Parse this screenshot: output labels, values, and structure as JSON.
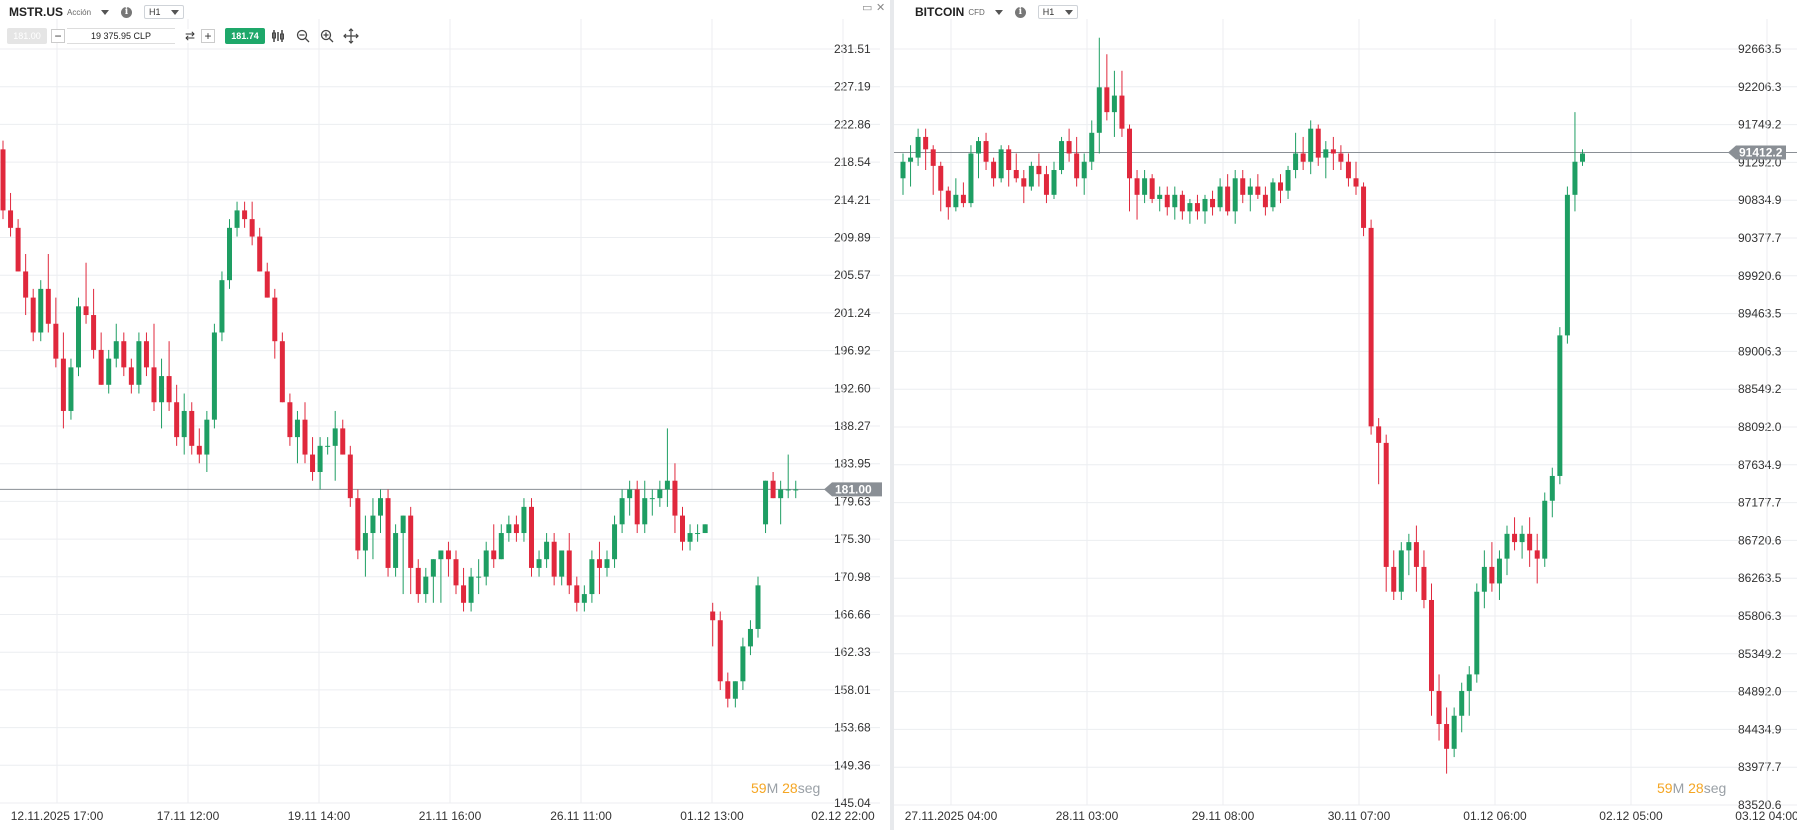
{
  "colors": {
    "up": "#1e9e63",
    "down": "#e0283c",
    "grid": "#eceef1",
    "axis_text": "#333333",
    "price_line": "#8a8f95",
    "price_tag_bg": "#8a8f95",
    "countdown_number": "#f5a623",
    "countdown_unit": "#9aa0a6",
    "buy_button": "#1ea86a"
  },
  "left": {
    "symbol": "MSTR.US",
    "asset_type": "Acción",
    "timeframe": "H1",
    "info_icon": "info-icon",
    "sell_price": "181.00",
    "quantity": "19 375.95 CLP",
    "buy_price": "181.74",
    "tools": [
      "indicators-icon",
      "zoom-out-icon",
      "zoom-in-icon",
      "crosshair-icon"
    ],
    "window_controls": [
      "maximize-icon",
      "close-icon"
    ],
    "countdown": {
      "minutes": "59",
      "minutes_unit": "M",
      "seconds": "28",
      "seconds_unit": "seg"
    },
    "chart_data": {
      "type": "candlestick",
      "current_price": 181.0,
      "current_price_label": "181.00",
      "y_ticks": [
        "231.51",
        "227.19",
        "222.86",
        "218.54",
        "214.21",
        "209.89",
        "205.57",
        "201.24",
        "196.92",
        "192.60",
        "188.27",
        "183.95",
        "179.63",
        "175.30",
        "170.98",
        "166.66",
        "162.33",
        "158.01",
        "153.68",
        "149.36",
        "145.04"
      ],
      "ylim": [
        145.04,
        231.51
      ],
      "x_ticks": [
        "12.11.2025 17:00",
        "17.11 12:00",
        "19.11 14:00",
        "21.11 16:00",
        "26.11 11:00",
        "01.12 13:00",
        "02.12 22:00"
      ],
      "grid": true,
      "candles": [
        [
          220,
          221,
          212,
          213
        ],
        [
          213,
          215,
          210,
          211
        ],
        [
          211,
          212,
          206,
          206
        ],
        [
          206,
          208,
          201,
          203
        ],
        [
          203,
          204,
          198,
          199
        ],
        [
          199,
          205,
          198,
          204
        ],
        [
          204,
          208,
          199,
          200
        ],
        [
          200,
          203,
          195,
          196
        ],
        [
          196,
          199,
          188,
          190
        ],
        [
          190,
          196,
          189,
          195
        ],
        [
          195,
          203,
          194,
          202
        ],
        [
          202,
          207,
          200,
          201
        ],
        [
          201,
          204,
          196,
          197
        ],
        [
          197,
          199,
          193,
          193
        ],
        [
          193,
          197,
          192,
          196
        ],
        [
          196,
          200,
          195,
          198
        ],
        [
          198,
          199,
          194,
          195
        ],
        [
          195,
          196,
          192,
          193
        ],
        [
          193,
          199,
          192,
          198
        ],
        [
          198,
          199,
          194,
          195
        ],
        [
          195,
          200,
          190,
          191
        ],
        [
          191,
          196,
          188,
          194
        ],
        [
          194,
          198,
          190,
          191
        ],
        [
          191,
          193,
          186,
          187
        ],
        [
          187,
          192,
          185,
          190
        ],
        [
          190,
          191,
          185,
          186
        ],
        [
          186,
          188,
          184,
          185
        ],
        [
          185,
          190,
          183,
          189
        ],
        [
          189,
          200,
          188,
          199
        ],
        [
          199,
          206,
          198,
          205
        ],
        [
          205,
          212,
          204,
          211
        ],
        [
          211,
          214,
          210,
          213
        ],
        [
          213,
          214,
          211,
          212
        ],
        [
          212,
          214,
          209,
          210
        ],
        [
          210,
          211,
          206,
          206
        ],
        [
          206,
          207,
          203,
          203
        ],
        [
          203,
          204,
          196,
          198
        ],
        [
          198,
          199,
          191,
          191
        ],
        [
          191,
          192,
          186,
          187
        ],
        [
          187,
          190,
          184,
          189
        ],
        [
          189,
          191,
          184,
          185
        ],
        [
          185,
          187,
          182,
          183
        ],
        [
          183,
          187,
          181,
          186
        ],
        [
          186,
          187,
          185,
          186
        ],
        [
          186,
          190,
          182,
          188
        ],
        [
          188,
          189,
          185,
          185
        ],
        [
          185,
          186,
          179,
          180
        ],
        [
          180,
          181,
          173,
          174
        ],
        [
          174,
          178,
          171,
          176
        ],
        [
          176,
          180,
          173,
          178
        ],
        [
          178,
          181,
          176,
          180
        ],
        [
          180,
          181,
          171,
          172
        ],
        [
          172,
          177,
          171,
          176
        ],
        [
          176,
          178,
          169,
          178
        ],
        [
          178,
          179,
          169,
          172
        ],
        [
          172,
          173,
          168,
          169
        ],
        [
          169,
          172,
          168,
          171
        ],
        [
          171,
          173,
          168,
          173
        ],
        [
          173,
          174,
          168,
          174
        ],
        [
          174,
          175,
          171,
          173
        ],
        [
          173,
          174,
          169,
          170
        ],
        [
          170,
          172,
          167,
          168
        ],
        [
          168,
          172,
          167,
          171
        ],
        [
          171,
          173,
          169,
          171
        ],
        [
          171,
          175,
          170,
          174
        ],
        [
          174,
          177,
          172,
          173
        ],
        [
          173,
          177,
          173,
          176
        ],
        [
          176,
          178,
          175,
          177
        ],
        [
          177,
          178,
          175,
          176
        ],
        [
          176,
          180,
          175,
          179
        ],
        [
          179,
          180,
          171,
          172
        ],
        [
          172,
          174,
          171,
          173
        ],
        [
          173,
          176,
          172,
          175
        ],
        [
          175,
          176,
          170,
          171
        ],
        [
          171,
          174,
          170,
          174
        ],
        [
          174,
          176,
          169,
          170
        ],
        [
          170,
          171,
          167,
          168
        ],
        [
          168,
          170,
          167,
          169
        ],
        [
          169,
          174,
          168,
          173
        ],
        [
          173,
          175,
          169,
          172
        ],
        [
          172,
          174,
          171,
          173
        ],
        [
          173,
          178,
          172,
          177
        ],
        [
          177,
          181,
          176,
          180
        ],
        [
          180,
          182,
          178,
          181
        ],
        [
          181,
          182,
          176,
          177
        ],
        [
          177,
          182,
          176,
          180
        ],
        [
          180,
          181,
          178,
          180
        ],
        [
          180,
          182,
          179,
          181
        ],
        [
          181,
          188,
          179,
          182
        ],
        [
          182,
          184,
          176,
          178
        ],
        [
          178,
          179,
          174,
          175
        ],
        [
          175,
          177,
          174,
          176
        ],
        [
          176,
          177,
          175,
          176
        ],
        [
          176,
          177,
          176,
          177
        ],
        [
          167,
          168,
          163,
          166
        ],
        [
          166,
          167,
          158,
          159
        ],
        [
          159,
          160,
          156,
          157
        ],
        [
          157,
          159,
          156,
          159
        ],
        [
          159,
          164,
          158,
          163
        ],
        [
          163,
          166,
          162,
          165
        ],
        [
          165,
          171,
          164,
          170
        ],
        [
          177,
          182,
          176,
          182
        ],
        [
          182,
          183,
          180,
          180
        ],
        [
          180,
          182,
          177,
          181
        ],
        [
          181,
          185,
          180,
          181
        ],
        [
          181,
          182,
          180,
          181
        ]
      ]
    }
  },
  "right": {
    "symbol": "BITCOIN",
    "asset_type": "CFD",
    "timeframe": "H1",
    "info_icon": "info-icon",
    "countdown": {
      "minutes": "59",
      "minutes_unit": "M",
      "seconds": "28",
      "seconds_unit": "seg"
    },
    "chart_data": {
      "type": "candlestick",
      "current_price": 91412.2,
      "current_price_label": "91412.2",
      "y_ticks": [
        "92663.5",
        "92206.3",
        "91749.2",
        "91292.0",
        "90834.9",
        "90377.7",
        "89920.6",
        "89463.5",
        "89006.3",
        "88549.2",
        "88092.0",
        "87634.9",
        "87177.7",
        "86720.6",
        "86263.5",
        "85806.3",
        "85349.2",
        "84892.0",
        "84434.9",
        "83977.7",
        "83520.6"
      ],
      "ylim": [
        83520.6,
        92663.5
      ],
      "x_ticks": [
        "27.11.2025 04:00",
        "28.11 03:00",
        "29.11 08:00",
        "30.11 07:00",
        "01.12 06:00",
        "02.12 05:00",
        "03.12 04:00"
      ],
      "grid": true,
      "candles": [
        [
          91100,
          91400,
          90900,
          91300
        ],
        [
          91300,
          91500,
          91000,
          91350
        ],
        [
          91350,
          91700,
          91250,
          91600
        ],
        [
          91600,
          91700,
          91200,
          91450
        ],
        [
          91450,
          91500,
          90900,
          91250
        ],
        [
          91250,
          91300,
          90700,
          90950
        ],
        [
          90950,
          91000,
          90600,
          90750
        ],
        [
          90750,
          91100,
          90700,
          90900
        ],
        [
          90900,
          91050,
          90750,
          90800
        ],
        [
          90800,
          91500,
          90750,
          91400
        ],
        [
          91400,
          91600,
          91100,
          91550
        ],
        [
          91550,
          91650,
          91200,
          91300
        ],
        [
          91300,
          91350,
          91000,
          91100
        ],
        [
          91100,
          91500,
          91050,
          91450
        ],
        [
          91450,
          91500,
          91000,
          91200
        ],
        [
          91200,
          91400,
          91050,
          91100
        ],
        [
          91100,
          91200,
          90800,
          91000
        ],
        [
          91000,
          91300,
          90950,
          91250
        ],
        [
          91250,
          91400,
          91000,
          91150
        ],
        [
          91150,
          91250,
          90800,
          90900
        ],
        [
          90900,
          91300,
          90850,
          91200
        ],
        [
          91200,
          91600,
          91150,
          91550
        ],
        [
          91550,
          91700,
          91300,
          91400
        ],
        [
          91400,
          91600,
          91000,
          91100
        ],
        [
          91100,
          91400,
          90900,
          91300
        ],
        [
          91300,
          91800,
          91200,
          91650
        ],
        [
          91650,
          92800,
          91400,
          92200
        ],
        [
          92200,
          92600,
          91800,
          91900
        ],
        [
          91900,
          92400,
          91600,
          92100
        ],
        [
          92100,
          92400,
          91600,
          91700
        ],
        [
          91700,
          91750,
          90700,
          91100
        ],
        [
          91100,
          91200,
          90600,
          90900
        ],
        [
          90900,
          91200,
          90800,
          91100
        ],
        [
          91100,
          91150,
          90800,
          90850
        ],
        [
          90850,
          91000,
          90700,
          90900
        ],
        [
          90900,
          91000,
          90650,
          90750
        ],
        [
          90750,
          91000,
          90600,
          90900
        ],
        [
          90900,
          90950,
          90600,
          90700
        ],
        [
          90700,
          90850,
          90550,
          90800
        ],
        [
          90800,
          90900,
          90600,
          90700
        ],
        [
          90700,
          90900,
          90550,
          90850
        ],
        [
          90850,
          90950,
          90650,
          90750
        ],
        [
          90750,
          91100,
          90700,
          91000
        ],
        [
          91000,
          91150,
          90650,
          90700
        ],
        [
          90700,
          91200,
          90550,
          91100
        ],
        [
          91100,
          91200,
          90800,
          90900
        ],
        [
          90900,
          91100,
          90700,
          91000
        ],
        [
          91000,
          91150,
          90850,
          90900
        ],
        [
          90900,
          91000,
          90650,
          90750
        ],
        [
          90750,
          91100,
          90700,
          91050
        ],
        [
          91050,
          91150,
          90800,
          90950
        ],
        [
          90950,
          91250,
          90850,
          91200
        ],
        [
          91200,
          91650,
          91100,
          91400
        ],
        [
          91400,
          91600,
          91200,
          91300
        ],
        [
          91300,
          91800,
          91150,
          91700
        ],
        [
          91700,
          91750,
          91250,
          91350
        ],
        [
          91350,
          91550,
          91100,
          91450
        ],
        [
          91450,
          91600,
          91200,
          91400
        ],
        [
          91400,
          91500,
          91200,
          91300
        ],
        [
          91300,
          91400,
          91000,
          91100
        ],
        [
          91100,
          91300,
          90900,
          91000
        ],
        [
          91000,
          91050,
          90400,
          90500
        ],
        [
          90500,
          90600,
          88000,
          88100
        ],
        [
          88100,
          88200,
          87400,
          87900
        ],
        [
          87900,
          88000,
          86100,
          86400
        ],
        [
          86400,
          86600,
          86000,
          86100
        ],
        [
          86100,
          86700,
          86000,
          86600
        ],
        [
          86600,
          86800,
          86300,
          86700
        ],
        [
          86700,
          86900,
          86100,
          86400
        ],
        [
          86400,
          86600,
          85900,
          86000
        ],
        [
          86000,
          86200,
          84600,
          84900
        ],
        [
          84900,
          85100,
          84300,
          84500
        ],
        [
          84500,
          84700,
          83900,
          84200
        ],
        [
          84200,
          84700,
          84100,
          84600
        ],
        [
          84600,
          85000,
          84400,
          84900
        ],
        [
          84900,
          85200,
          84600,
          85100
        ],
        [
          85100,
          86200,
          85000,
          86100
        ],
        [
          86100,
          86600,
          85900,
          86400
        ],
        [
          86400,
          86700,
          86100,
          86200
        ],
        [
          86200,
          86600,
          86000,
          86500
        ],
        [
          86500,
          86900,
          86300,
          86800
        ],
        [
          86800,
          87000,
          86600,
          86700
        ],
        [
          86700,
          86900,
          86500,
          86800
        ],
        [
          86800,
          87000,
          86400,
          86600
        ],
        [
          86600,
          86800,
          86200,
          86500
        ],
        [
          86500,
          87300,
          86400,
          87200
        ],
        [
          87200,
          87600,
          87000,
          87500
        ],
        [
          87500,
          89300,
          87400,
          89200
        ],
        [
          89200,
          91000,
          89100,
          90900
        ],
        [
          90900,
          91900,
          90700,
          91300
        ],
        [
          91300,
          91450,
          91250,
          91400
        ]
      ]
    }
  }
}
